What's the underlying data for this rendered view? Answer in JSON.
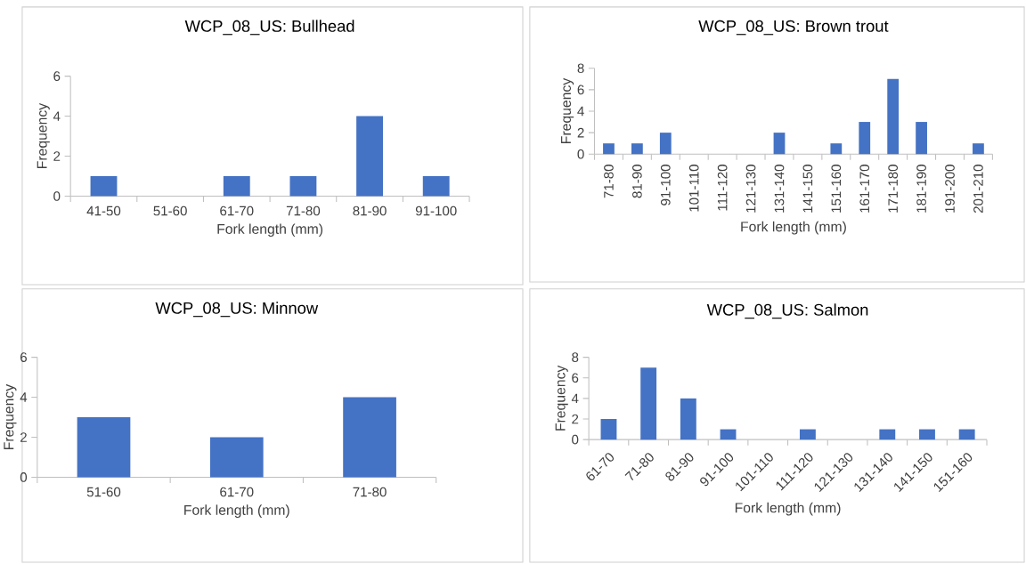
{
  "chart_data": [
    {
      "type": "bar",
      "title": "WCP_08_US: Bullhead",
      "xlabel": "Fork length (mm)",
      "ylabel": "Frequency",
      "categories": [
        "41-50",
        "51-60",
        "61-70",
        "71-80",
        "81-90",
        "91-100"
      ],
      "values": [
        1,
        0,
        1,
        1,
        4,
        1
      ],
      "color": "#4472c4",
      "ylim": [
        0,
        6
      ],
      "yticks": [
        0,
        2,
        4,
        6
      ]
    },
    {
      "type": "bar",
      "title": "WCP_08_US: Brown trout",
      "xlabel": "Fork length (mm)",
      "ylabel": "Frequency",
      "categories": [
        "71-80",
        "81-90",
        "91-100",
        "101-110",
        "111-120",
        "121-130",
        "131-140",
        "141-150",
        "151-160",
        "161-170",
        "171-180",
        "181-190",
        "191-200",
        "201-210"
      ],
      "values": [
        1,
        1,
        2,
        0,
        0,
        0,
        2,
        0,
        1,
        3,
        7,
        3,
        0,
        1
      ],
      "color": "#4472c4",
      "ylim": [
        0,
        8
      ],
      "yticks": [
        0,
        2,
        4,
        6,
        8
      ]
    },
    {
      "type": "bar",
      "title": "WCP_08_US: Minnow",
      "xlabel": "Fork length (mm)",
      "ylabel": "Frequency",
      "categories": [
        "51-60",
        "61-70",
        "71-80"
      ],
      "values": [
        3,
        2,
        4
      ],
      "color": "#4472c4",
      "ylim": [
        0,
        6
      ],
      "yticks": [
        0,
        2,
        4,
        6
      ]
    },
    {
      "type": "bar",
      "title": "WCP_08_US: Salmon",
      "xlabel": "Fork length (mm)",
      "ylabel": "Frequency",
      "categories": [
        "61-70",
        "71-80",
        "81-90",
        "91-100",
        "101-110",
        "111-120",
        "121-130",
        "131-140",
        "141-150",
        "151-160"
      ],
      "values": [
        2,
        7,
        4,
        1,
        0,
        1,
        0,
        1,
        1,
        1
      ],
      "color": "#4472c4",
      "ylim": [
        0,
        8
      ],
      "yticks": [
        0,
        2,
        4,
        6,
        8
      ]
    }
  ]
}
